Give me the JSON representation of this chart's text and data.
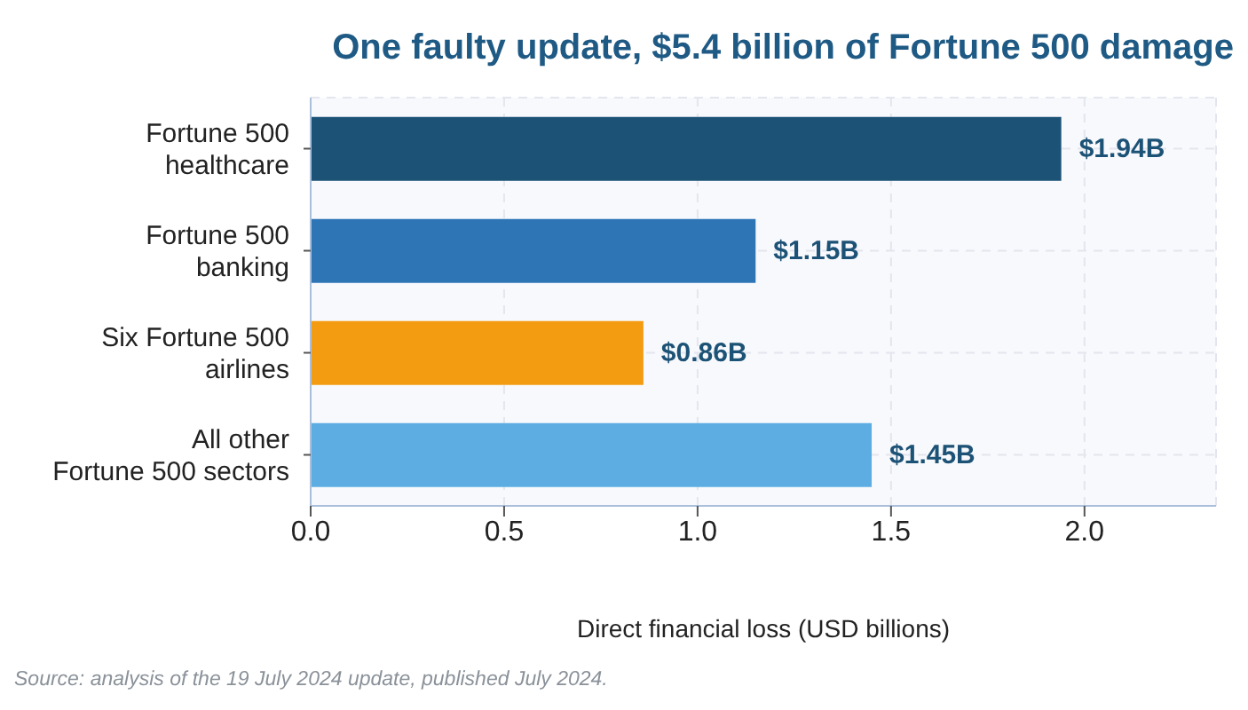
{
  "chart_data": {
    "type": "bar",
    "orientation": "horizontal",
    "title": "One faulty update, $5.4 billion of Fortune 500 damage",
    "categories": [
      "Fortune 500\nhealthcare",
      "Fortune 500\nbanking",
      "Six Fortune 500\nairlines",
      "All other\nFortune 500 sectors"
    ],
    "values": [
      1.94,
      1.15,
      0.86,
      1.45
    ],
    "colors": [
      "#1c5276",
      "#2e75b6",
      "#f39c12",
      "#5dade2"
    ],
    "value_labels": [
      "$1.94B",
      "$1.15B",
      "$0.86B",
      "$1.45B"
    ],
    "xlim": [
      0,
      2.34
    ],
    "xticks": [
      {
        "value": 0,
        "label": "0.0"
      },
      {
        "value": 0.5,
        "label": "0.5"
      },
      {
        "value": 1,
        "label": "1.0"
      },
      {
        "value": 1.5,
        "label": "1.5"
      },
      {
        "value": 2,
        "label": "2.0"
      }
    ],
    "xlabel": "Direct financial loss (USD billions)",
    "grid": true,
    "annotations": [
      "Source: analysis of the 19 July 2024 update, published July 2024."
    ]
  }
}
